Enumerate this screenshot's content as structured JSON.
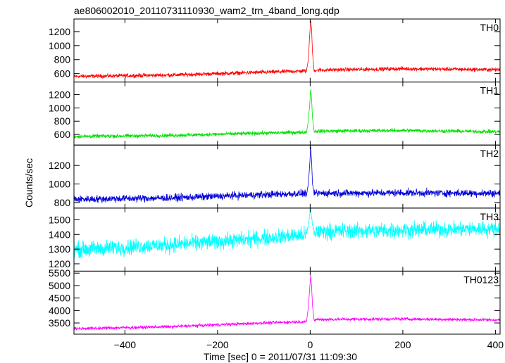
{
  "chart_data": {
    "type": "line",
    "title": "ae806002010_20110731110930_wam2_trn_4band_long.qdp",
    "xlabel": "Time [sec] 0 = 2011/07/31 11:09:30",
    "ylabel": "Counts/sec",
    "xlim": [
      -510,
      410
    ],
    "x_ticks": [
      -400,
      -200,
      0,
      200,
      400
    ],
    "x_tick_labels": [
      "−400",
      "−200",
      "0",
      "200",
      "400"
    ],
    "grid": false,
    "legend": "none",
    "panels": [
      {
        "name": "TH0",
        "color": "#ff0000",
        "ylim": [
          480,
          1380
        ],
        "y_ticks": [
          600,
          800,
          1000,
          1200
        ],
        "y_tick_labels": [
          "600",
          "800",
          "1000",
          "1200"
        ],
        "trend": [
          [
            -510,
            560
          ],
          [
            -300,
            580
          ],
          [
            -100,
            620
          ],
          [
            0,
            640
          ],
          [
            15,
            650
          ],
          [
            200,
            670
          ],
          [
            410,
            655
          ]
        ],
        "noise": 20,
        "burst": [
          [
            -8,
            640
          ],
          [
            -4,
            800
          ],
          [
            -1,
            1150
          ],
          [
            1,
            1350
          ],
          [
            3,
            1250
          ],
          [
            5,
            900
          ],
          [
            8,
            680
          ]
        ]
      },
      {
        "name": "TH1",
        "color": "#00e000",
        "ylim": [
          440,
          1390
        ],
        "y_ticks": [
          600,
          800,
          1000,
          1200
        ],
        "y_tick_labels": [
          "600",
          "800",
          "1000",
          "1200"
        ],
        "trend": [
          [
            -510,
            570
          ],
          [
            -300,
            585
          ],
          [
            -100,
            620
          ],
          [
            0,
            635
          ],
          [
            15,
            650
          ],
          [
            200,
            660
          ],
          [
            410,
            640
          ]
        ],
        "noise": 20,
        "burst": [
          [
            -8,
            630
          ],
          [
            -4,
            800
          ],
          [
            -1,
            1050
          ],
          [
            1,
            1280
          ],
          [
            3,
            1150
          ],
          [
            5,
            850
          ],
          [
            8,
            680
          ]
        ]
      },
      {
        "name": "TH2",
        "color": "#0000d8",
        "ylim": [
          740,
          1420
        ],
        "y_ticks": [
          800,
          1000,
          1200
        ],
        "y_tick_labels": [
          "800",
          "1000",
          "1200"
        ],
        "trend": [
          [
            -510,
            835
          ],
          [
            -300,
            850
          ],
          [
            -100,
            885
          ],
          [
            0,
            900
          ],
          [
            15,
            900
          ],
          [
            200,
            905
          ],
          [
            410,
            900
          ]
        ],
        "noise": 28,
        "burst": [
          [
            -8,
            880
          ],
          [
            -4,
            1000
          ],
          [
            -1,
            1200
          ],
          [
            1,
            1400
          ],
          [
            3,
            1250
          ],
          [
            5,
            1000
          ],
          [
            8,
            920
          ]
        ]
      },
      {
        "name": "TH3",
        "color": "#00ffff",
        "ylim": [
          1150,
          1580
        ],
        "y_ticks": [
          1200,
          1300,
          1400,
          1500
        ],
        "y_tick_labels": [
          "1200",
          "1300",
          "1400",
          "1500"
        ],
        "trend": [
          [
            -510,
            1295
          ],
          [
            -300,
            1330
          ],
          [
            -100,
            1375
          ],
          [
            0,
            1400
          ],
          [
            15,
            1420
          ],
          [
            200,
            1430
          ],
          [
            410,
            1440
          ]
        ],
        "noise": 38,
        "burst": [
          [
            -8,
            1410
          ],
          [
            -4,
            1460
          ],
          [
            -1,
            1530
          ],
          [
            1,
            1570
          ],
          [
            3,
            1520
          ],
          [
            5,
            1460
          ],
          [
            8,
            1430
          ]
        ]
      },
      {
        "name": "TH0123",
        "color": "#ff00ff",
        "ylim": [
          3050,
          5580
        ],
        "y_ticks": [
          3500,
          4000,
          4500,
          5000,
          5500
        ],
        "y_tick_labels": [
          "3500",
          "4000",
          "4500",
          "5000",
          "5500"
        ],
        "trend": [
          [
            -510,
            3270
          ],
          [
            -300,
            3350
          ],
          [
            -100,
            3500
          ],
          [
            0,
            3560
          ],
          [
            15,
            3640
          ],
          [
            200,
            3660
          ],
          [
            410,
            3620
          ]
        ],
        "noise": 45,
        "burst": [
          [
            -8,
            3550
          ],
          [
            -4,
            4100
          ],
          [
            -1,
            4900
          ],
          [
            1,
            5380
          ],
          [
            3,
            5000
          ],
          [
            5,
            4200
          ],
          [
            8,
            3700
          ]
        ]
      }
    ]
  }
}
